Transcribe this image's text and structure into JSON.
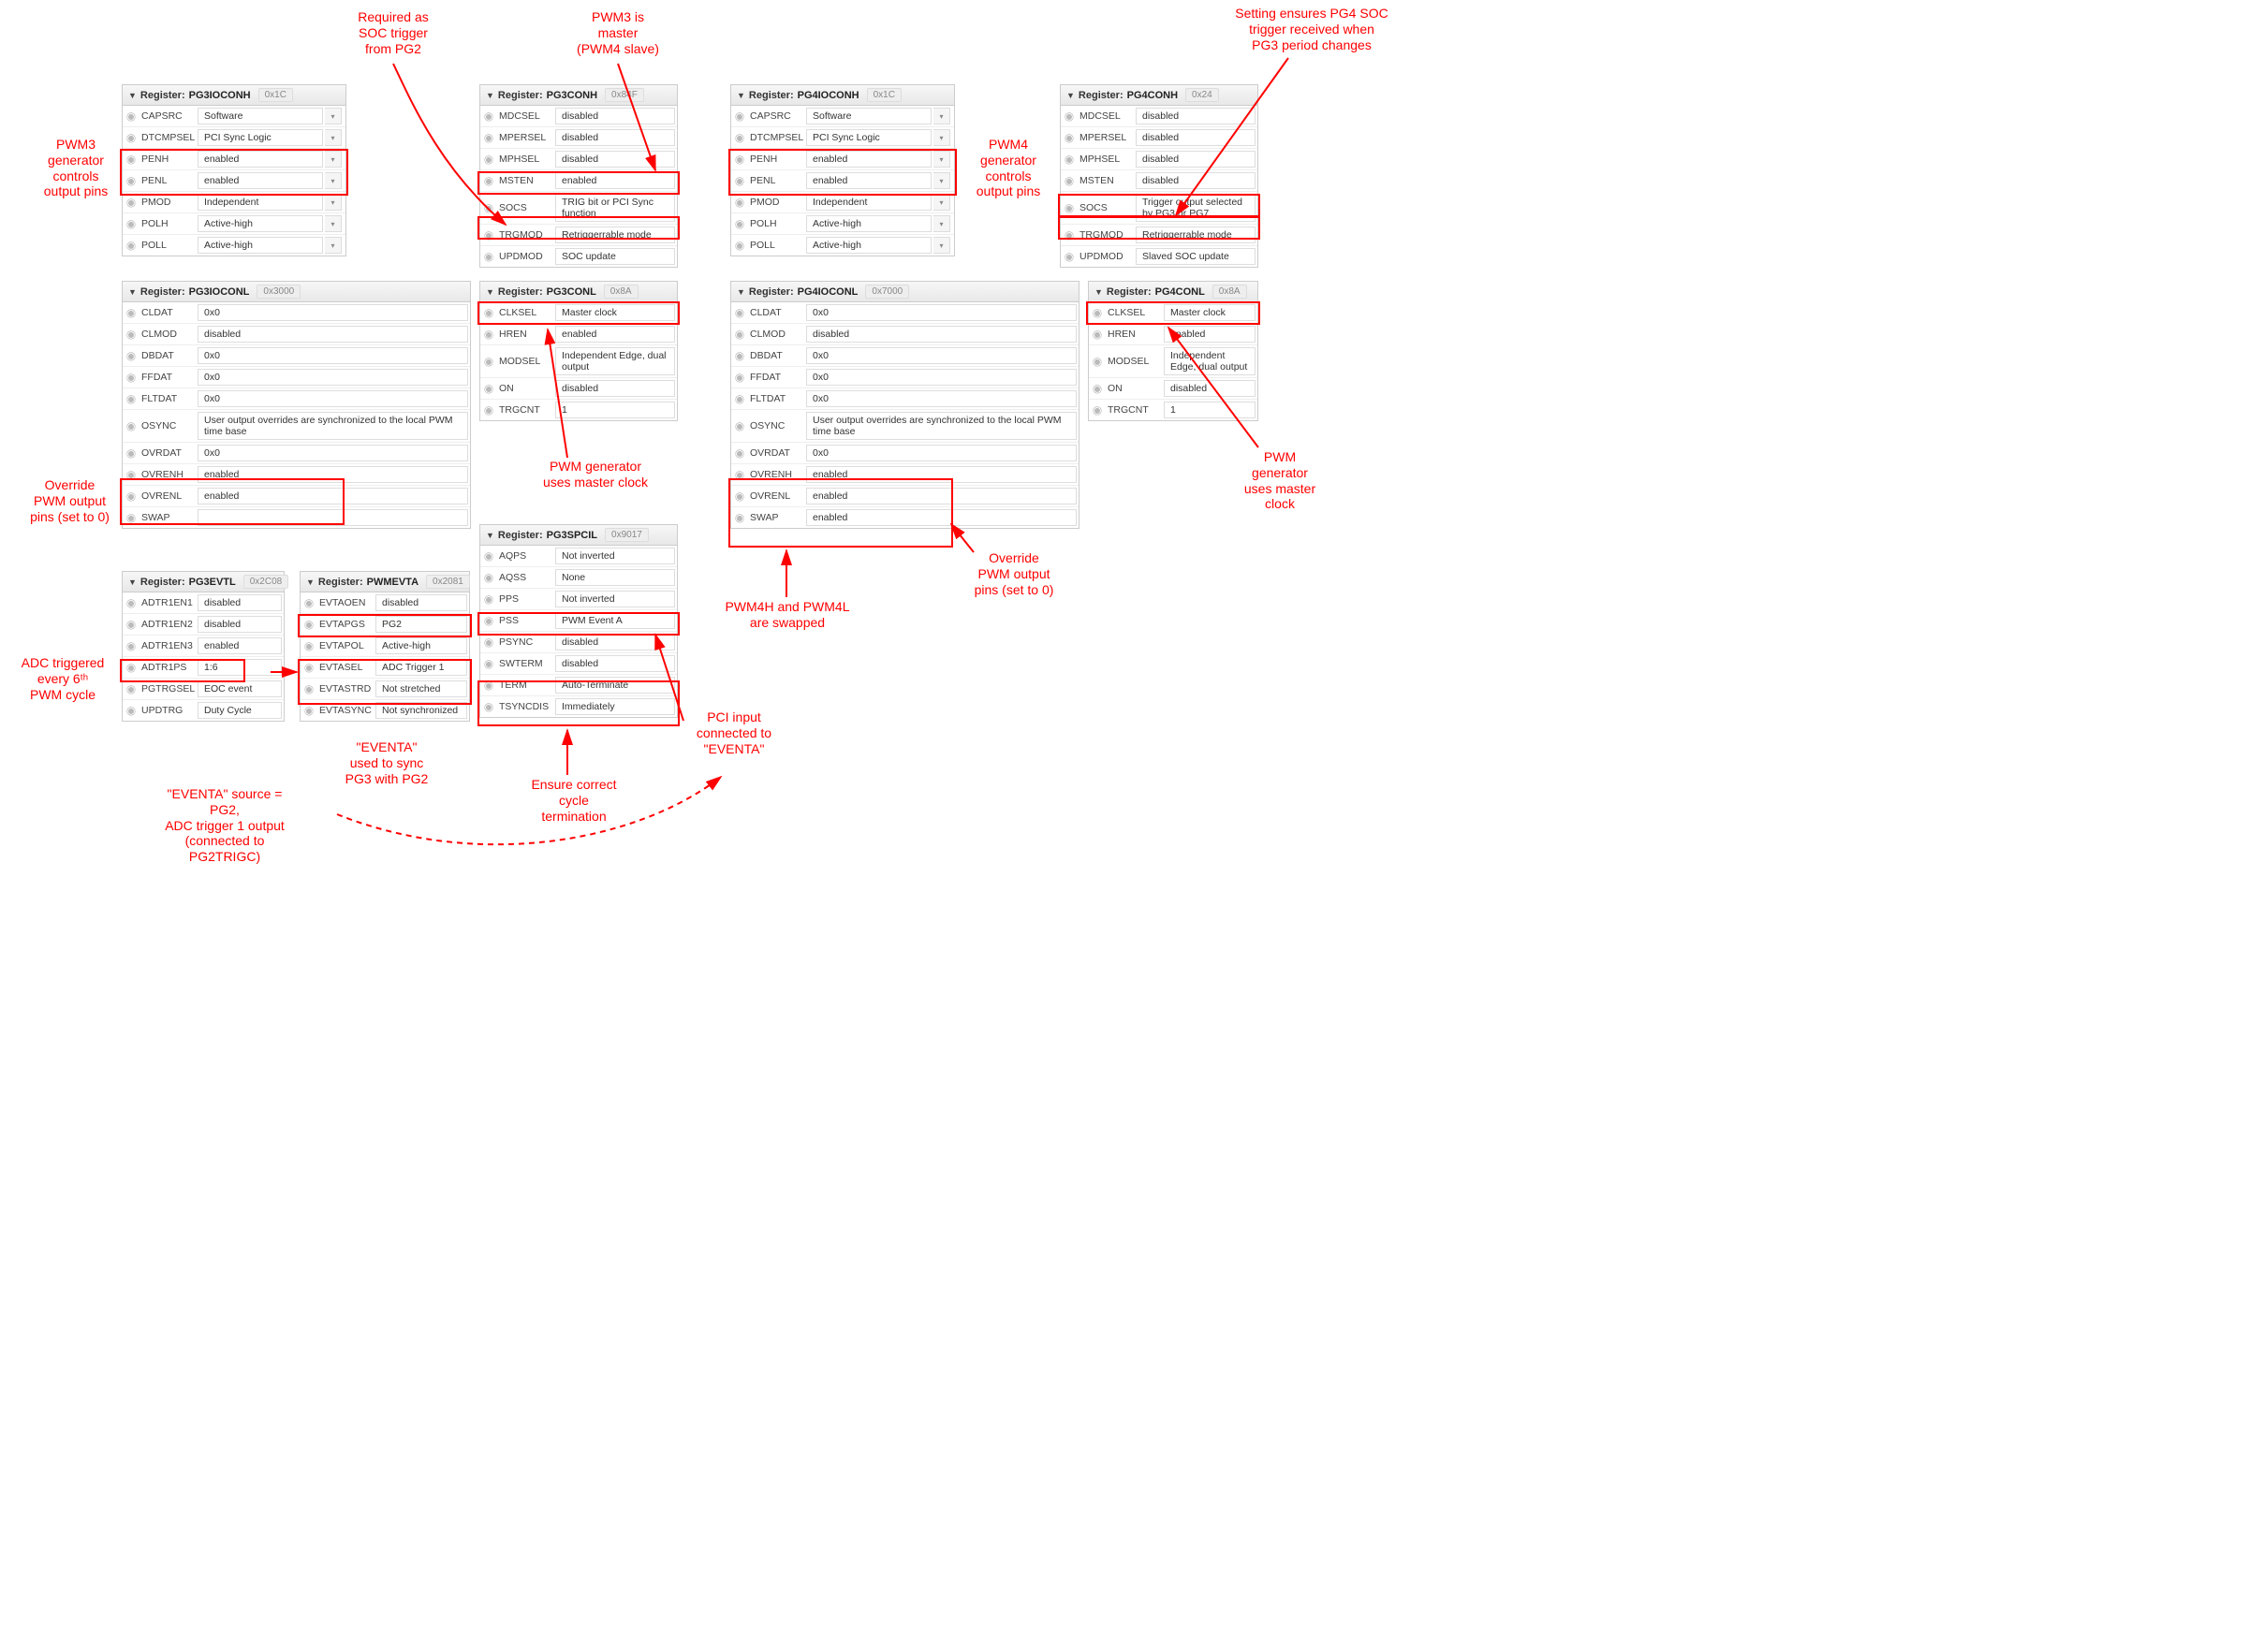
{
  "colors": {
    "red": "#f00",
    "border": "#ccc",
    "text": "#333"
  },
  "annotations": {
    "soc_trigger": "Required as\nSOC trigger\nfrom PG2",
    "pwm3_master": "PWM3 is\nmaster\n(PWM4 slave)",
    "pg4_soc": "Setting ensures PG4 SOC\ntrigger received when\nPG3 period changes",
    "pwm3_gen": "PWM3\ngenerator\ncontrols\noutput pins",
    "pwm4_gen": "PWM4\ngenerator\ncontrols\noutput pins",
    "override3": "Override\nPWM output\npins (set to 0)",
    "override4": "Override\nPWM output\npins (set to 0)",
    "adc_trig": "ADC triggered\nevery 6ᵗʰ\nPWM cycle",
    "eventa_sync": "\"EVENTA\"\nused to sync\nPG3 with PG2",
    "eventa_src": "\"EVENTA\" source =\nPG2,\nADC trigger 1 output\n(connected to\nPG2TRIGC)",
    "master_clock3": "PWM generator\nuses master clock",
    "master_clock4": "PWM\ngenerator\nuses master\nclock",
    "ensure_term": "Ensure correct\ncycle\ntermination",
    "pci_eventa": "PCI input\nconnected to\n\"EVENTA\"",
    "pwm4_swap": "PWM4H and PWM4L\nare swapped"
  },
  "panels": {
    "pg3ioconh": {
      "title": "PG3IOCONH",
      "hex": "0x1C",
      "rows": [
        {
          "name": "CAPSRC",
          "val": "Software",
          "dd": true
        },
        {
          "name": "DTCMPSEL",
          "val": "PCI Sync Logic",
          "dd": true
        },
        {
          "name": "PENH",
          "val": "enabled",
          "dd": true
        },
        {
          "name": "PENL",
          "val": "enabled",
          "dd": true
        },
        {
          "name": "PMOD",
          "val": "Independent",
          "dd": true
        },
        {
          "name": "POLH",
          "val": "Active-high",
          "dd": true
        },
        {
          "name": "POLL",
          "val": "Active-high",
          "dd": true
        }
      ]
    },
    "pg3conh": {
      "title": "PG3CONH",
      "hex": "0x84F",
      "rows": [
        {
          "name": "MDCSEL",
          "val": "disabled"
        },
        {
          "name": "MPERSEL",
          "val": "disabled"
        },
        {
          "name": "MPHSEL",
          "val": "disabled"
        },
        {
          "name": "MSTEN",
          "val": "enabled"
        },
        {
          "name": "SOCS",
          "val": "TRIG bit or PCI Sync function"
        },
        {
          "name": "TRGMOD",
          "val": "Retriggerrable mode"
        },
        {
          "name": "UPDMOD",
          "val": "SOC update"
        }
      ]
    },
    "pg4ioconh": {
      "title": "PG4IOCONH",
      "hex": "0x1C",
      "rows": [
        {
          "name": "CAPSRC",
          "val": "Software",
          "dd": true
        },
        {
          "name": "DTCMPSEL",
          "val": "PCI Sync Logic",
          "dd": true
        },
        {
          "name": "PENH",
          "val": "enabled",
          "dd": true
        },
        {
          "name": "PENL",
          "val": "enabled",
          "dd": true
        },
        {
          "name": "PMOD",
          "val": "Independent",
          "dd": true
        },
        {
          "name": "POLH",
          "val": "Active-high",
          "dd": true
        },
        {
          "name": "POLL",
          "val": "Active-high",
          "dd": true
        }
      ]
    },
    "pg4conh": {
      "title": "PG4CONH",
      "hex": "0x24",
      "rows": [
        {
          "name": "MDCSEL",
          "val": "disabled"
        },
        {
          "name": "MPERSEL",
          "val": "disabled"
        },
        {
          "name": "MPHSEL",
          "val": "disabled"
        },
        {
          "name": "MSTEN",
          "val": "disabled"
        },
        {
          "name": "SOCS",
          "val": "Trigger output selected by PG3 or PG7"
        },
        {
          "name": "TRGMOD",
          "val": "Retriggerrable mode"
        },
        {
          "name": "UPDMOD",
          "val": "Slaved SOC update"
        }
      ]
    },
    "pg3ioconl": {
      "title": "PG3IOCONL",
      "hex": "0x3000",
      "rows": [
        {
          "name": "CLDAT",
          "val": "0x0"
        },
        {
          "name": "CLMOD",
          "val": "disabled"
        },
        {
          "name": "DBDAT",
          "val": "0x0"
        },
        {
          "name": "FFDAT",
          "val": "0x0"
        },
        {
          "name": "FLTDAT",
          "val": "0x0"
        },
        {
          "name": "OSYNC",
          "val": "User output overrides are synchronized to the local PWM time base"
        },
        {
          "name": "OVRDAT",
          "val": "0x0"
        },
        {
          "name": "OVRENH",
          "val": "enabled"
        },
        {
          "name": "OVRENL",
          "val": "enabled"
        },
        {
          "name": "SWAP",
          "val": ""
        }
      ]
    },
    "pg3conl": {
      "title": "PG3CONL",
      "hex": "0x8A",
      "rows": [
        {
          "name": "CLKSEL",
          "val": "Master clock"
        },
        {
          "name": "HREN",
          "val": "enabled"
        },
        {
          "name": "MODSEL",
          "val": "Independent Edge, dual output"
        },
        {
          "name": "ON",
          "val": "disabled"
        },
        {
          "name": "TRGCNT",
          "val": "1"
        }
      ]
    },
    "pg4ioconl": {
      "title": "PG4IOCONL",
      "hex": "0x7000",
      "rows": [
        {
          "name": "CLDAT",
          "val": "0x0"
        },
        {
          "name": "CLMOD",
          "val": "disabled"
        },
        {
          "name": "DBDAT",
          "val": "0x0"
        },
        {
          "name": "FFDAT",
          "val": "0x0"
        },
        {
          "name": "FLTDAT",
          "val": "0x0"
        },
        {
          "name": "OSYNC",
          "val": "User output overrides are synchronized to the local PWM time base"
        },
        {
          "name": "OVRDAT",
          "val": "0x0"
        },
        {
          "name": "OVRENH",
          "val": "enabled"
        },
        {
          "name": "OVRENL",
          "val": "enabled"
        },
        {
          "name": "SWAP",
          "val": "enabled"
        }
      ]
    },
    "pg4conl": {
      "title": "PG4CONL",
      "hex": "0x8A",
      "rows": [
        {
          "name": "CLKSEL",
          "val": "Master clock"
        },
        {
          "name": "HREN",
          "val": "enabled"
        },
        {
          "name": "MODSEL",
          "val": "Independent Edge, dual output"
        },
        {
          "name": "ON",
          "val": "disabled"
        },
        {
          "name": "TRGCNT",
          "val": "1"
        }
      ]
    },
    "pg3evtl": {
      "title": "PG3EVTL",
      "hex": "0x2C08",
      "rows": [
        {
          "name": "ADTR1EN1",
          "val": "disabled"
        },
        {
          "name": "ADTR1EN2",
          "val": "disabled"
        },
        {
          "name": "ADTR1EN3",
          "val": "enabled"
        },
        {
          "name": "ADTR1PS",
          "val": "1:6"
        },
        {
          "name": "PGTRGSEL",
          "val": "EOC event"
        },
        {
          "name": "UPDTRG",
          "val": "Duty Cycle"
        }
      ]
    },
    "pwmevta": {
      "title": "PWMEVTA",
      "hex": "0x2081",
      "rows": [
        {
          "name": "EVTAOEN",
          "val": "disabled"
        },
        {
          "name": "EVTAPGS",
          "val": "PG2"
        },
        {
          "name": "EVTAPOL",
          "val": "Active-high"
        },
        {
          "name": "EVTASEL",
          "val": "ADC Trigger 1"
        },
        {
          "name": "EVTASTRD",
          "val": "Not stretched"
        },
        {
          "name": "EVTASYNC",
          "val": "Not synchronized"
        }
      ]
    },
    "pg3spcil": {
      "title": "PG3SPCIL",
      "hex": "0x9017",
      "rows": [
        {
          "name": "AQPS",
          "val": "Not inverted"
        },
        {
          "name": "AQSS",
          "val": "None"
        },
        {
          "name": "PPS",
          "val": "Not inverted"
        },
        {
          "name": "PSS",
          "val": "PWM Event A"
        },
        {
          "name": "PSYNC",
          "val": "disabled"
        },
        {
          "name": "SWTERM",
          "val": "disabled"
        },
        {
          "name": "TERM",
          "val": "Auto-Terminate"
        },
        {
          "name": "TSYNCDIS",
          "val": "Immediately"
        }
      ]
    }
  }
}
